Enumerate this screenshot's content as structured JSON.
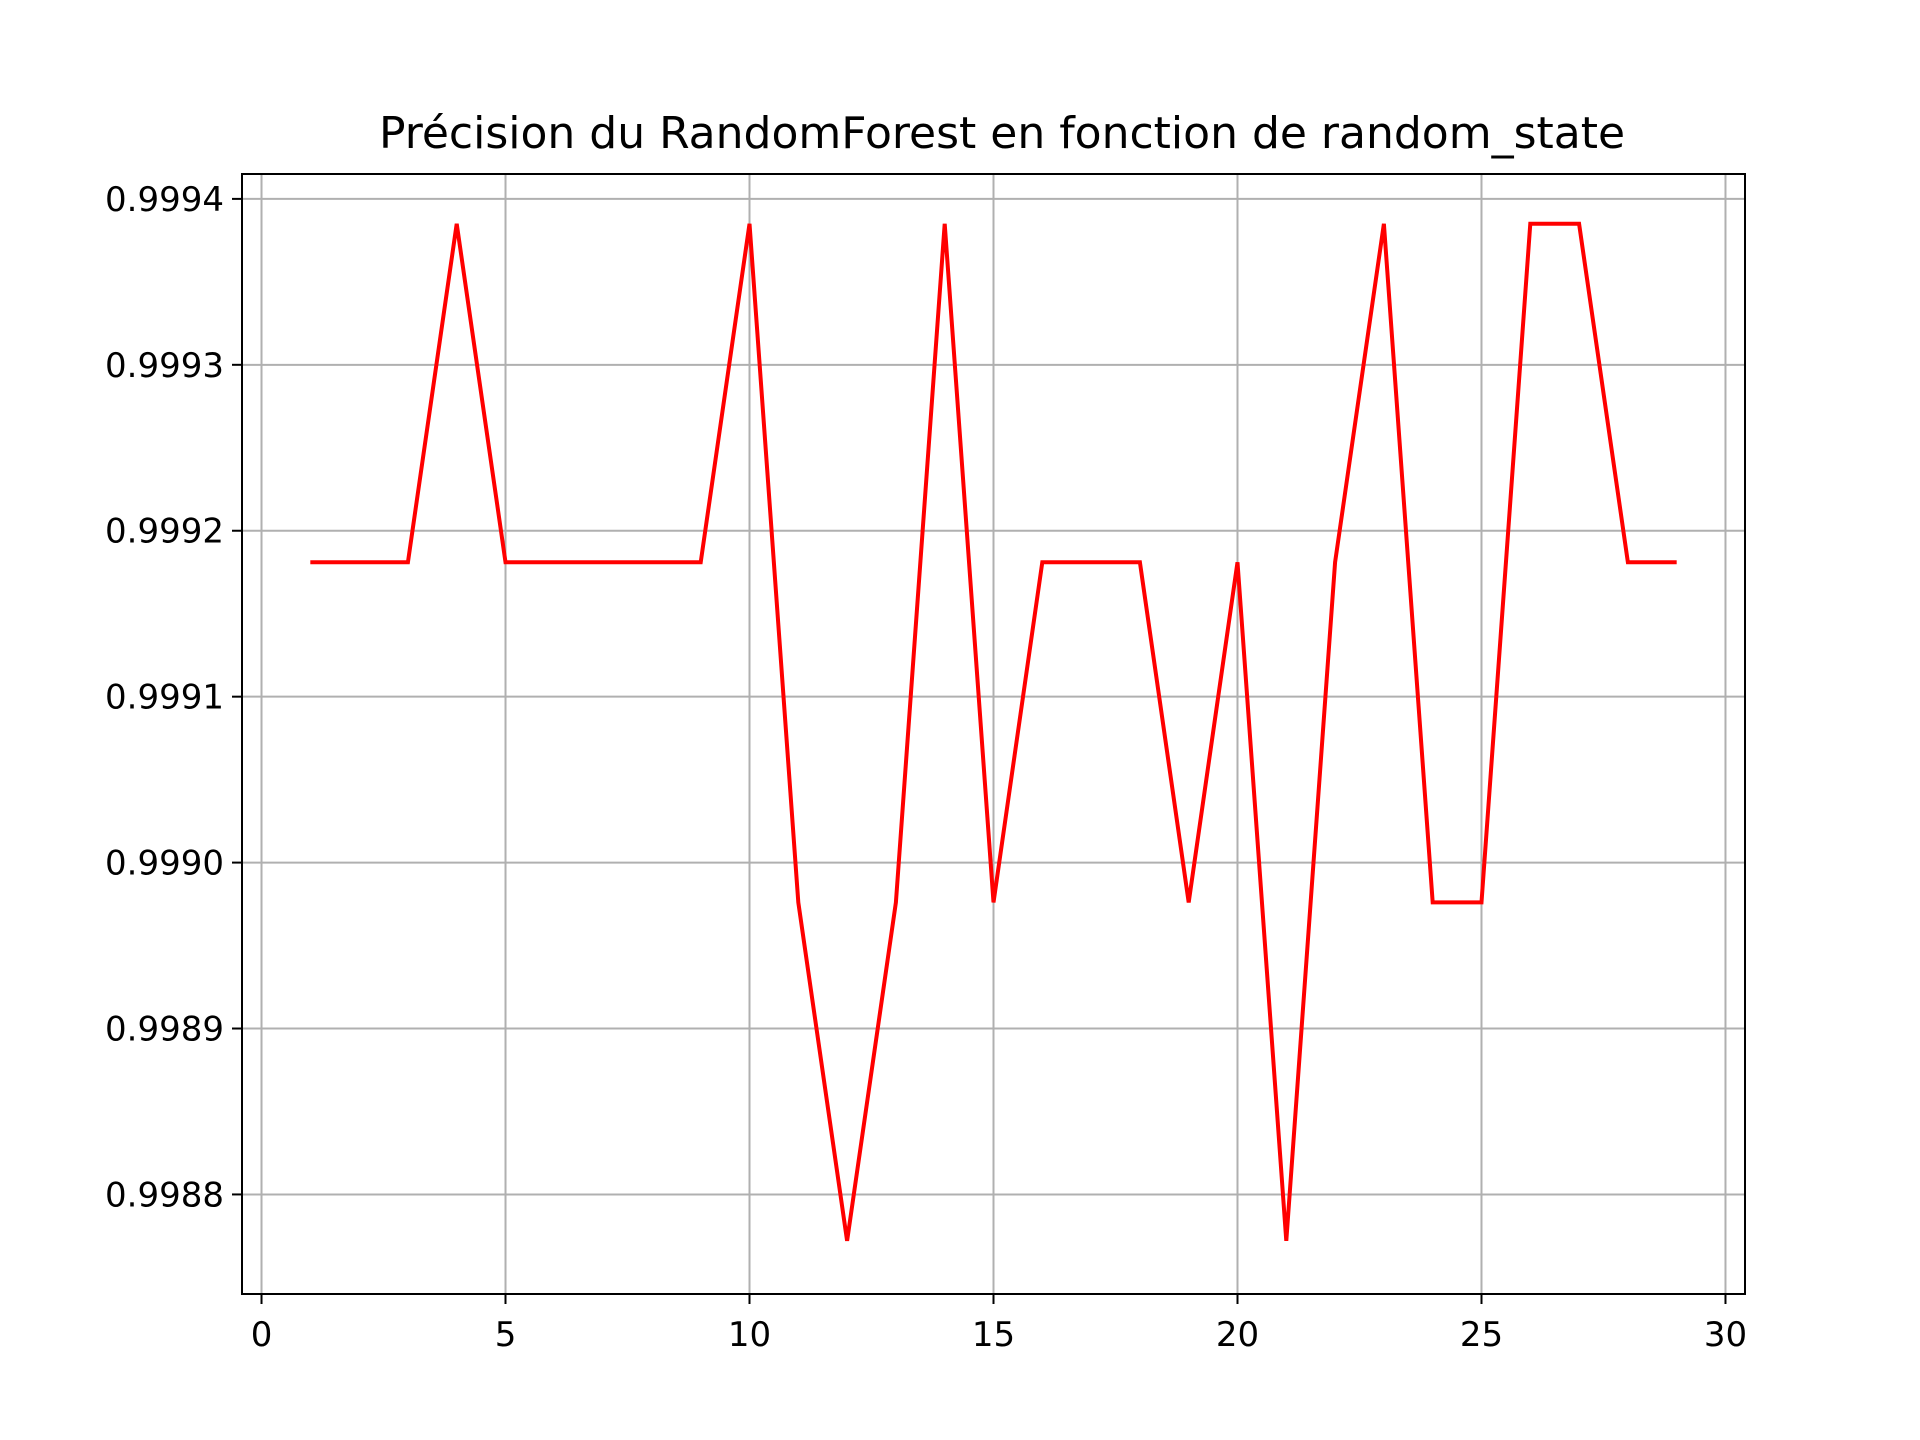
{
  "chart_data": {
    "type": "line",
    "title": "Précision du RandomForest en fonction de random_state",
    "xlabel": "",
    "ylabel": "",
    "xlim": [
      -0.4,
      30.4
    ],
    "ylim": [
      0.99874,
      0.999415
    ],
    "grid": true,
    "x_ticks": [
      0,
      5,
      10,
      15,
      20,
      25,
      30
    ],
    "x_tick_labels": [
      "0",
      "5",
      "10",
      "15",
      "20",
      "25",
      "30"
    ],
    "y_ticks": [
      0.9988,
      0.9989,
      0.999,
      0.9991,
      0.9992,
      0.9993,
      0.9994
    ],
    "y_tick_labels": [
      "0.9988",
      "0.9989",
      "0.9990",
      "0.9991",
      "0.9992",
      "0.9993",
      "0.9994"
    ],
    "colors": {
      "line": "#ff0000",
      "grid": "#b0b0b0",
      "axes": "#000000"
    },
    "series": [
      {
        "color": "#ff0000",
        "x": [
          1,
          2,
          3,
          4,
          5,
          6,
          7,
          8,
          9,
          10,
          11,
          12,
          13,
          14,
          15,
          16,
          17,
          18,
          19,
          20,
          21,
          22,
          23,
          24,
          25,
          26,
          27,
          28,
          29
        ],
        "y": [
          0.999181,
          0.999181,
          0.999181,
          0.999385,
          0.999181,
          0.999181,
          0.999181,
          0.999181,
          0.999181,
          0.999385,
          0.998976,
          0.998772,
          0.998976,
          0.999385,
          0.998976,
          0.999181,
          0.999181,
          0.999181,
          0.998976,
          0.999181,
          0.998772,
          0.999181,
          0.999385,
          0.998976,
          0.998976,
          0.999385,
          0.999385,
          0.999181,
          0.999181
        ]
      }
    ]
  }
}
